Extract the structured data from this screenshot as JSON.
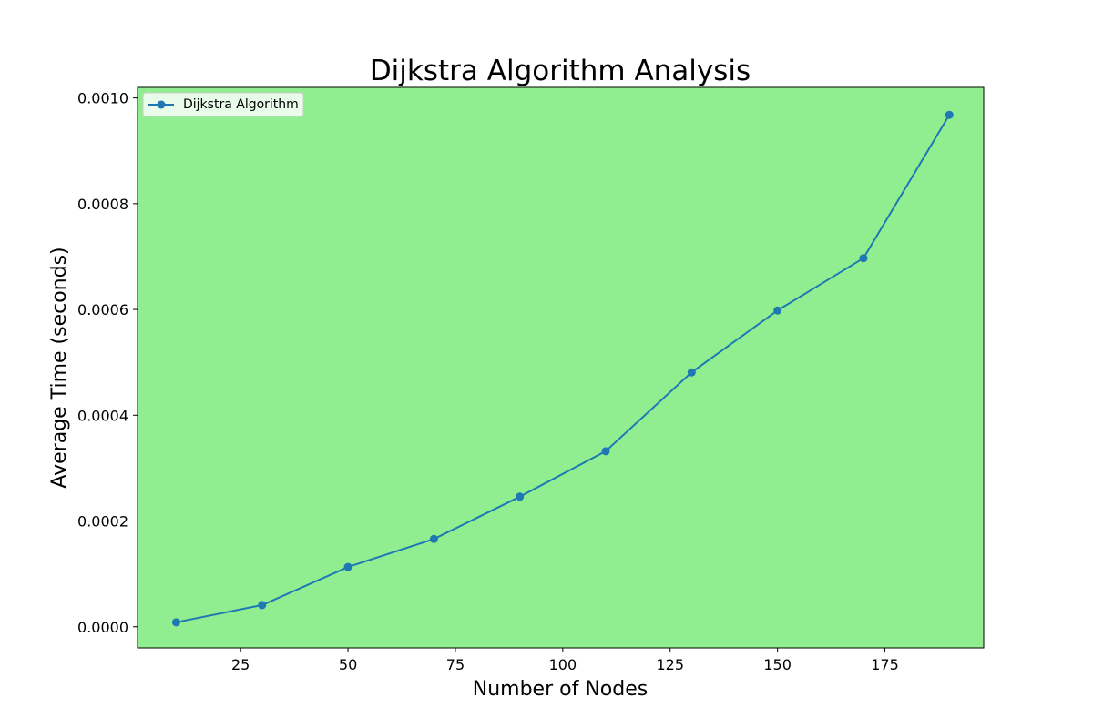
{
  "chart_data": {
    "type": "line",
    "title": "Dijkstra Algorithm Analysis",
    "xlabel": "Number of Nodes",
    "ylabel": "Average Time (seconds)",
    "xlim": [
      1,
      198
    ],
    "ylim": [
      -4e-05,
      0.00102
    ],
    "x_ticks": [
      25,
      50,
      75,
      100,
      125,
      150,
      175
    ],
    "x_tick_labels": [
      "25",
      "50",
      "75",
      "100",
      "125",
      "150",
      "175"
    ],
    "y_ticks": [
      0,
      0.0002,
      0.0004,
      0.0006,
      0.0008,
      0.001
    ],
    "y_tick_labels": [
      "0.0000",
      "0.0002",
      "0.0004",
      "0.0006",
      "0.0008",
      "0.0010"
    ],
    "grid": false,
    "legend_position": "upper-left",
    "background_color": "#90ee90",
    "series": [
      {
        "name": "Dijkstra Algorithm",
        "color": "#1f77b4",
        "marker": "circle",
        "x": [
          10,
          30,
          50,
          70,
          90,
          110,
          130,
          150,
          170,
          190
        ],
        "y": [
          8.5e-06,
          4.1e-05,
          0.000113,
          0.000166,
          0.000246,
          0.000332,
          0.000481,
          0.000598,
          0.000697,
          0.000968
        ]
      }
    ]
  }
}
